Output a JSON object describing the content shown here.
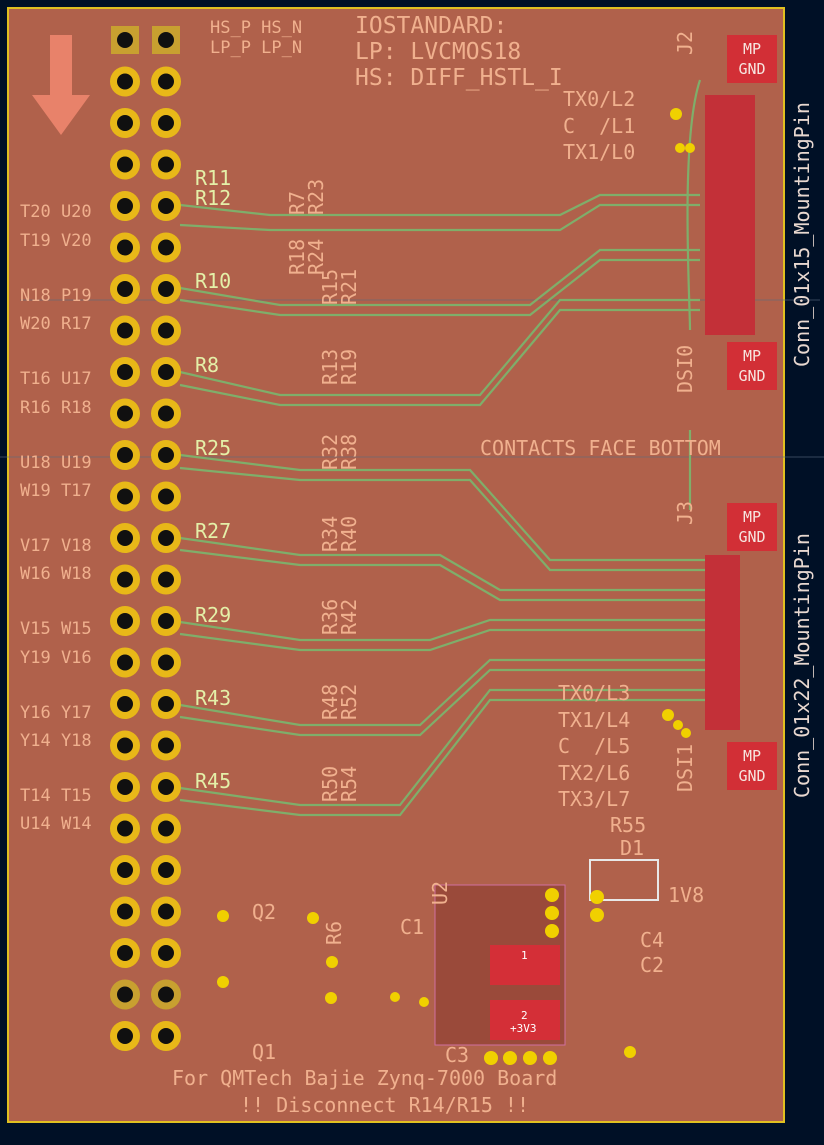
{
  "iostandard": {
    "title": "IOSTANDARD:",
    "lp": "LP: LVCMOS18",
    "hs": "HS: DIFF_HSTL_I"
  },
  "header_labels": [
    "HS_P HS_N",
    "LP_P LP_N"
  ],
  "j2": {
    "ref": "J2",
    "value": "Conn_01x15_MountingPin",
    "name": "DSI0",
    "lanes": [
      "TX0/L2",
      "C  /L1",
      "TX1/L0"
    ]
  },
  "j3": {
    "ref": "J3",
    "value": "Conn_01x22_MountingPin",
    "name": "DSI1",
    "lanes": [
      "TX0/L3",
      "TX1/L4",
      "C  /L5",
      "TX2/L6",
      "TX3/L7"
    ]
  },
  "mounting_pad": {
    "line1": "MP",
    "line2": "GND"
  },
  "note": "CONTACTS FACE BOTTOM",
  "pin_pairs": [
    "T20 U20",
    "T19 V20",
    "N18 P19",
    "W20 R17",
    "T16 U17",
    "R16 R18",
    "U18 U19",
    "W19 T17",
    "V17 V18",
    "W16 W18",
    "V15 W15",
    "Y19 V16",
    "Y16 Y17",
    "Y14 Y18",
    "T14 T15",
    "U14 W14"
  ],
  "resistors": [
    "R11",
    "R12",
    "R10",
    "R8",
    "R25",
    "R27",
    "R29",
    "R43",
    "R45"
  ],
  "resistor_pairs": [
    [
      "R7",
      "R23"
    ],
    [
      "R18",
      "R24"
    ],
    [
      "R15",
      "R21"
    ],
    [
      "R13",
      "R19"
    ],
    [
      "R32",
      "R38"
    ],
    [
      "R34",
      "R40"
    ],
    [
      "R36",
      "R42"
    ],
    [
      "R48",
      "R52"
    ],
    [
      "R50",
      "R54"
    ]
  ],
  "power": {
    "r55": "R55",
    "d1": "D1",
    "v18": "1V8",
    "c4": "C4",
    "c2": "C2",
    "c1": "C1",
    "c3": "C3",
    "u2": "U2",
    "q2": "Q2",
    "q1": "Q1",
    "r6": "R6",
    "pad1": "1",
    "pad2": "2",
    "v33": "+3V3"
  },
  "footer": [
    "For QMTech Bajie Zynq-7000 Board",
    "!! Disconnect R14/R15 !!"
  ]
}
